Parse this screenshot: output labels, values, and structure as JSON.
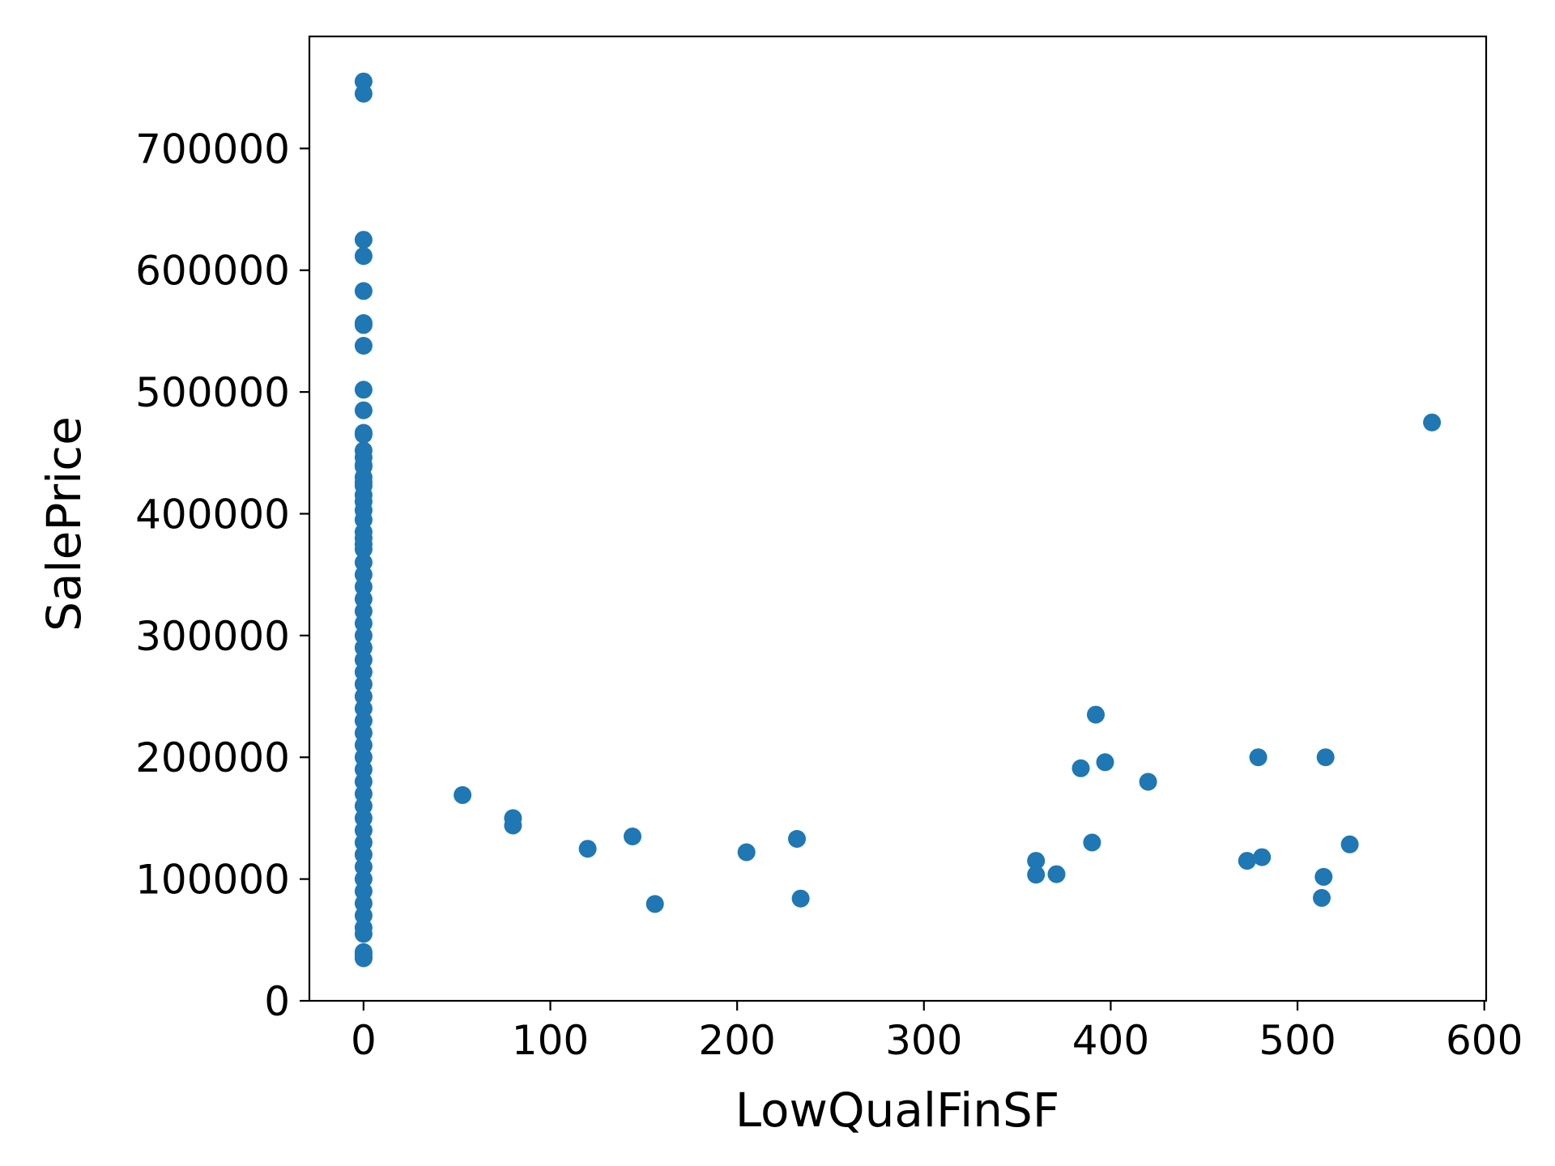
{
  "chart_data": {
    "type": "scatter",
    "xlabel": "LowQualFinSF",
    "ylabel": "SalePrice",
    "xlim": [
      -29,
      601
    ],
    "ylim": [
      0,
      792000
    ],
    "xticks": [
      0,
      100,
      200,
      300,
      400,
      500,
      600
    ],
    "yticks": [
      0,
      100000,
      200000,
      300000,
      400000,
      500000,
      600000,
      700000
    ],
    "grid": false,
    "marker_color": "#1f77b4",
    "series": [
      {
        "points": [
          [
            0,
            755000
          ],
          [
            0,
            745000
          ],
          [
            0,
            625000
          ],
          [
            0,
            611657
          ],
          [
            0,
            582933
          ],
          [
            0,
            556581
          ],
          [
            0,
            555000
          ],
          [
            0,
            538000
          ],
          [
            0,
            501837
          ],
          [
            0,
            485000
          ],
          [
            0,
            466500
          ],
          [
            0,
            465000
          ],
          [
            0,
            451950
          ],
          [
            0,
            446261
          ],
          [
            0,
            440000
          ],
          [
            0,
            438780
          ],
          [
            0,
            430000
          ],
          [
            0,
            426000
          ],
          [
            0,
            423000
          ],
          [
            0,
            415298
          ],
          [
            0,
            410000
          ],
          [
            0,
            402861
          ],
          [
            0,
            395000
          ],
          [
            0,
            385000
          ],
          [
            0,
            380000
          ],
          [
            0,
            375000
          ],
          [
            0,
            370878
          ],
          [
            0,
            360000
          ],
          [
            0,
            350000
          ],
          [
            0,
            340000
          ],
          [
            0,
            330000
          ],
          [
            0,
            320000
          ],
          [
            0,
            310000
          ],
          [
            0,
            300000
          ],
          [
            0,
            290000
          ],
          [
            0,
            280000
          ],
          [
            0,
            270000
          ],
          [
            0,
            260000
          ],
          [
            0,
            250000
          ],
          [
            0,
            240000
          ],
          [
            0,
            230000
          ],
          [
            0,
            220000
          ],
          [
            0,
            210000
          ],
          [
            0,
            200000
          ],
          [
            0,
            190000
          ],
          [
            0,
            180000
          ],
          [
            0,
            170000
          ],
          [
            0,
            160000
          ],
          [
            0,
            150000
          ],
          [
            0,
            140000
          ],
          [
            0,
            130000
          ],
          [
            0,
            120000
          ],
          [
            0,
            110000
          ],
          [
            0,
            100000
          ],
          [
            0,
            90000
          ],
          [
            0,
            80000
          ],
          [
            0,
            70000
          ],
          [
            0,
            60000
          ],
          [
            0,
            55000
          ],
          [
            0,
            40000
          ],
          [
            0,
            37900
          ],
          [
            0,
            35311
          ],
          [
            0,
            34900
          ],
          [
            53,
            169000
          ],
          [
            80,
            150000
          ],
          [
            80,
            144000
          ],
          [
            120,
            124900
          ],
          [
            144,
            135000
          ],
          [
            156,
            79500
          ],
          [
            205,
            122000
          ],
          [
            232,
            133000
          ],
          [
            234,
            84000
          ],
          [
            360,
            115000
          ],
          [
            360,
            103600
          ],
          [
            371,
            104000
          ],
          [
            384,
            191000
          ],
          [
            390,
            130000
          ],
          [
            392,
            235000
          ],
          [
            397,
            196000
          ],
          [
            420,
            179900
          ],
          [
            473,
            115000
          ],
          [
            479,
            200000
          ],
          [
            481,
            118000
          ],
          [
            513,
            84500
          ],
          [
            514,
            101800
          ],
          [
            515,
            200000
          ],
          [
            528,
            128500
          ],
          [
            572,
            475000
          ]
        ]
      }
    ]
  }
}
